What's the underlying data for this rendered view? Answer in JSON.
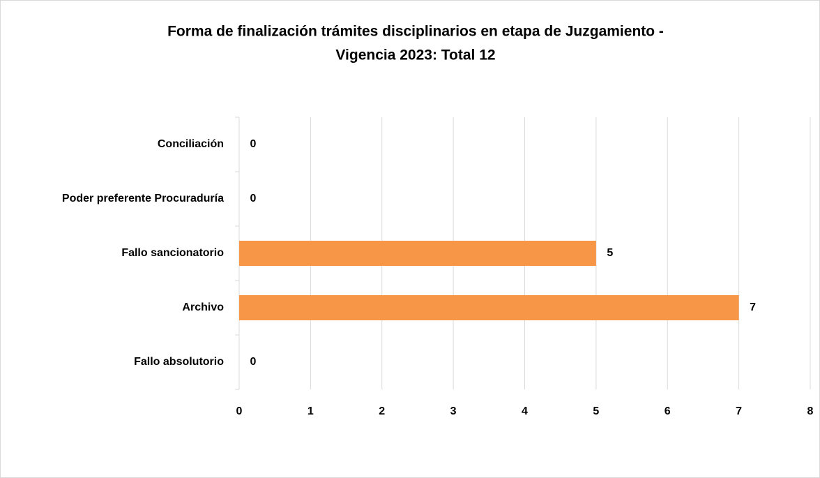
{
  "chart_data": {
    "type": "bar",
    "orientation": "horizontal",
    "title": [
      "Forma de finalización trámites disciplinarios en etapa de Juzgamiento -",
      "Vigencia 2023: Total 12"
    ],
    "categories": [
      "Conciliación",
      "Poder preferente Procuraduría",
      "Fallo sancionatorio",
      "Archivo",
      "Fallo absolutorio"
    ],
    "values": [
      0,
      0,
      5,
      7,
      0
    ],
    "color": "#f79646",
    "xlim": [
      0,
      8
    ],
    "xticks": [
      0,
      1,
      2,
      3,
      4,
      5,
      6,
      7,
      8
    ],
    "grid": true
  }
}
